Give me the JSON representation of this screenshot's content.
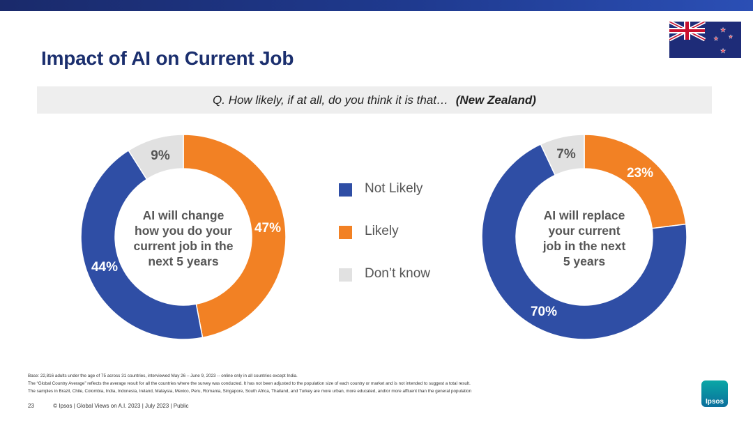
{
  "title": "Impact of AI on Current Job",
  "question": {
    "text": "Q. How likely, if at all, do you think it is that…",
    "country": "(New Zealand)"
  },
  "colors": {
    "not_likely": "#2f4ea5",
    "likely": "#f28124",
    "dont_know": "#e1e1e1",
    "title": "#1b2f6e"
  },
  "legend": [
    {
      "label": "Not Likely",
      "color": "#2f4ea5"
    },
    {
      "label": "Likely",
      "color": "#f28124"
    },
    {
      "label": "Don’t know",
      "color": "#e1e1e1"
    }
  ],
  "chart_data": [
    {
      "type": "pie",
      "center_label": [
        "AI will change",
        "how you do your",
        "current job in the",
        "next 5 years"
      ],
      "slices": [
        {
          "label": "Likely",
          "value": 47,
          "text": "47%",
          "color": "#f28124"
        },
        {
          "label": "Not Likely",
          "value": 44,
          "text": "44%",
          "color": "#2f4ea5"
        },
        {
          "label": "Don’t know",
          "value": 9,
          "text": "9%",
          "color": "#e1e1e1"
        }
      ]
    },
    {
      "type": "pie",
      "center_label": [
        "AI will replace",
        "your current",
        "job in the next",
        "5 years"
      ],
      "slices": [
        {
          "label": "Likely",
          "value": 23,
          "text": "23%",
          "color": "#f28124"
        },
        {
          "label": "Not Likely",
          "value": 70,
          "text": "70%",
          "color": "#2f4ea5"
        },
        {
          "label": "Don’t know",
          "value": 7,
          "text": "7%",
          "color": "#e1e1e1"
        }
      ]
    }
  ],
  "footnotes": [
    "Base: 22,816 adults under the age of 75 across 31 countries, interviewed May 26 – June 9, 2023 -- online only in all countries except India.",
    "The “Global Country Average” reflects the average result for all the countries where the survey was conducted. It has not been adjusted to the population size of each country or market and is not intended to suggest a total result.",
    "The samples in Brazil, Chile, Colombia, India, Indonesia, Ireland, Malaysia, Mexico, Peru, Romania, Singapore, South Africa, Thailand, and Turkey are more urban, more educated, and/or more affluent than the general population"
  ],
  "footer": {
    "page": "23",
    "text": "© Ipsos | Global Views on A.I. 2023 | July 2023 | Public"
  },
  "logo": {
    "text": "Ipsos"
  }
}
